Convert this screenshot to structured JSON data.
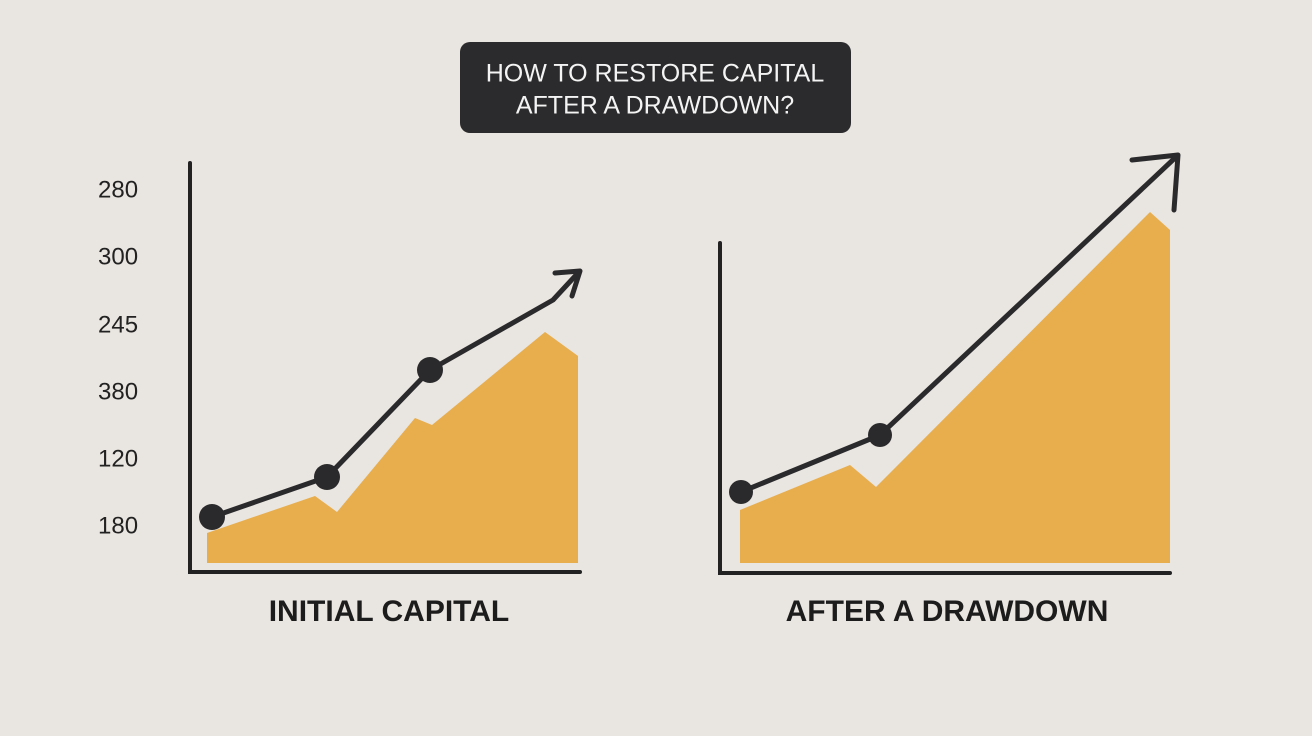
{
  "title": {
    "lines": [
      "HOW TO RESTORE CAPITAL",
      "AFTER A DRAWDOWN?"
    ]
  },
  "panels": [
    {
      "label": "INITIAL CAPITAL",
      "axis_labels": [
        "280",
        "300",
        "245",
        "380",
        "120",
        "180"
      ]
    },
    {
      "label": "AFTER A DRAWDOWN"
    }
  ]
}
